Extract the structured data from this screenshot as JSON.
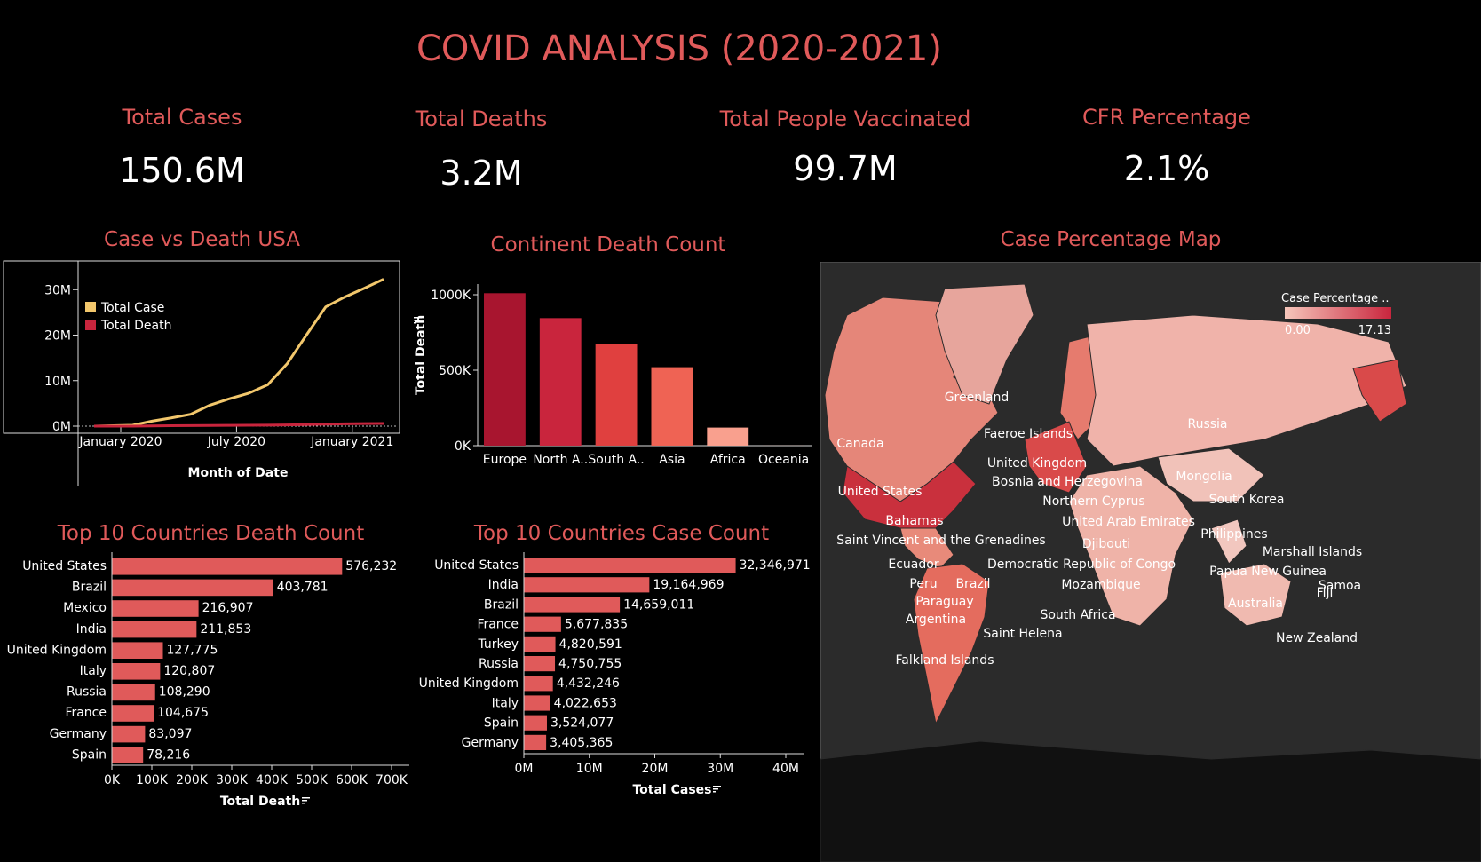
{
  "title": "COVID ANALYSIS (2020-2021)",
  "kpis": [
    {
      "label": "Total Cases",
      "value": "150.6M"
    },
    {
      "label": "Total Deaths",
      "value": "3.2M"
    },
    {
      "label": "Total People Vaccinated",
      "value": "99.7M"
    },
    {
      "label": "CFR Percentage",
      "value": "2.1%"
    }
  ],
  "chart_data": [
    {
      "type": "line",
      "title": "Case vs Death USA",
      "xlabel": "Month of Date",
      "ylabel": "",
      "x_ticks": [
        "January 2020",
        "July 2020",
        "January 2021"
      ],
      "y_ticks": [
        "30M",
        "20M",
        "10M",
        "0M"
      ],
      "ylim": [
        0,
        32
      ],
      "x": [
        "2020-01",
        "2020-02",
        "2020-03",
        "2020-04",
        "2020-05",
        "2020-06",
        "2020-07",
        "2020-08",
        "2020-09",
        "2020-10",
        "2020-11",
        "2020-12",
        "2021-01",
        "2021-02",
        "2021-03",
        "2021-04"
      ],
      "series": [
        {
          "name": "Total Case",
          "color": "#f2c76c",
          "values": [
            0,
            0.1,
            0.2,
            1.1,
            1.8,
            2.6,
            4.6,
            6.0,
            7.2,
            9.1,
            13.7,
            20.0,
            26.2,
            28.4,
            30.3,
            32.3
          ]
        },
        {
          "name": "Total Death",
          "color": "#c9253d",
          "values": [
            0,
            0,
            0,
            0.05,
            0.1,
            0.12,
            0.15,
            0.18,
            0.2,
            0.23,
            0.27,
            0.34,
            0.44,
            0.51,
            0.55,
            0.58
          ]
        }
      ]
    },
    {
      "type": "bar",
      "title": "Continent Death Count",
      "ylabel": "Total Death",
      "y_ticks": [
        "1000K",
        "500K",
        "0K"
      ],
      "ylim": [
        0,
        1000
      ],
      "categories": [
        "Europe",
        "North A..",
        "South A..",
        "Asia",
        "Africa",
        "Oceania"
      ],
      "values": [
        1010,
        845,
        672,
        520,
        120,
        1
      ],
      "colors": [
        "#a8152f",
        "#c9253d",
        "#e0403f",
        "#ef6354",
        "#f9a08e",
        "#fcd0c2"
      ]
    },
    {
      "type": "bar",
      "orientation": "horizontal",
      "title": "Top 10 Countries Death Count",
      "xlabel": "Total Death",
      "x_ticks": [
        "0K",
        "100K",
        "200K",
        "300K",
        "400K",
        "500K",
        "600K",
        "700K"
      ],
      "xlim": [
        0,
        700000
      ],
      "categories": [
        "United States",
        "Brazil",
        "Mexico",
        "India",
        "United Kingdom",
        "Italy",
        "Russia",
        "France",
        "Germany",
        "Spain"
      ],
      "values": [
        576232,
        403781,
        216907,
        211853,
        127775,
        120807,
        108290,
        104675,
        83097,
        78216
      ],
      "value_labels": [
        "576,232",
        "403,781",
        "216,907",
        "211,853",
        "127,775",
        "120,807",
        "108,290",
        "104,675",
        "83,097",
        "78,216"
      ],
      "color": "#e05a5a"
    },
    {
      "type": "bar",
      "orientation": "horizontal",
      "title": "Top 10 Countries Case Count",
      "xlabel": "Total Cases",
      "x_ticks": [
        "0M",
        "10M",
        "20M",
        "30M",
        "40M"
      ],
      "xlim": [
        0,
        40000000
      ],
      "categories": [
        "United States",
        "India",
        "Brazil",
        "France",
        "Turkey",
        "Russia",
        "United Kingdom",
        "Italy",
        "Spain",
        "Germany"
      ],
      "values": [
        32346971,
        19164969,
        14659011,
        5677835,
        4820591,
        4750755,
        4432246,
        4022653,
        3524077,
        3405365
      ],
      "value_labels": [
        "32,346,971",
        "19,164,969",
        "14,659,011",
        "5,677,835",
        "4,820,591",
        "4,750,755",
        "4,432,246",
        "4,022,653",
        "3,524,077",
        "3,405,365"
      ],
      "color": "#e05a5a"
    }
  ],
  "map": {
    "title": "Case Percentage Map",
    "legend_title": "Case Percentage ..",
    "legend_min": "0.00",
    "legend_max": "17.13",
    "labels": [
      "Greenland",
      "Canada",
      "Faeroe Islands",
      "Russia",
      "United Kingdom",
      "Bosnia and Herzegovina",
      "Mongolia",
      "United States",
      "Northern Cyprus",
      "South Korea",
      "Bahamas",
      "United Arab Emirates",
      "Saint Vincent and the Grenadines",
      "Djibouti",
      "Philippines",
      "Marshall Islands",
      "Ecuador",
      "Democratic Republic of Congo",
      "Papua New Guinea",
      "Peru",
      "Brazil",
      "Samoa",
      "Fiji",
      "Mozambique",
      "Paraguay",
      "Australia",
      "Argentina",
      "South Africa",
      "Saint Helena",
      "New Zealand",
      "Falkland Islands"
    ]
  }
}
